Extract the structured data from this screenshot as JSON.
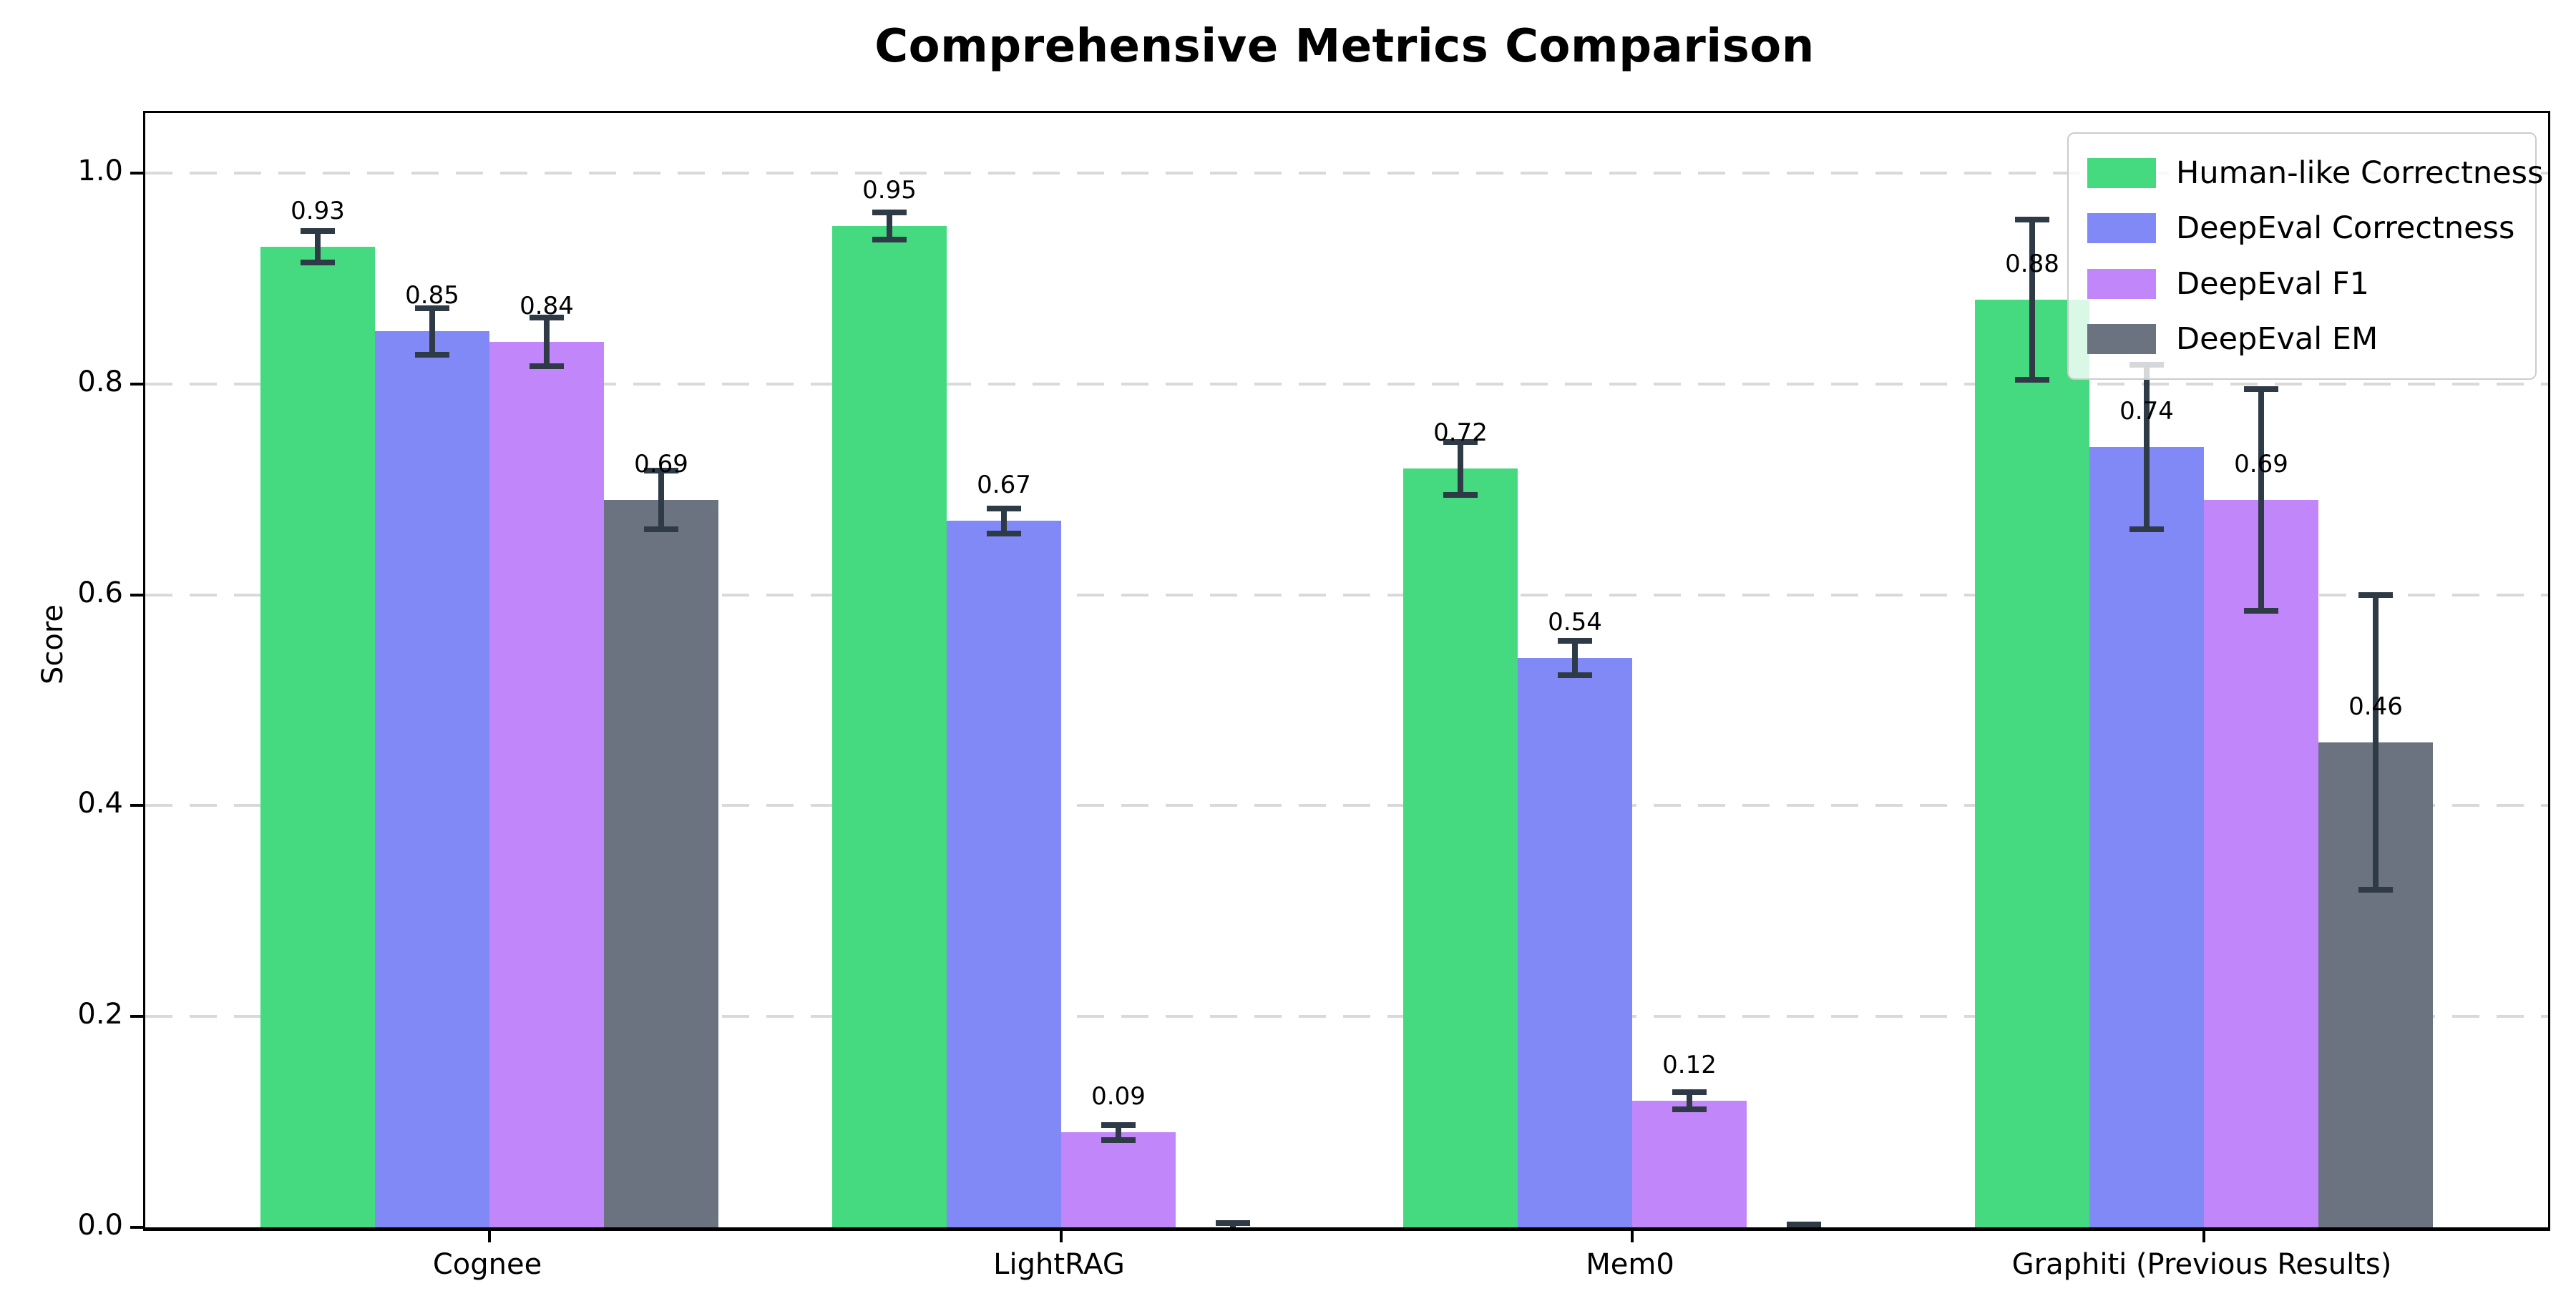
{
  "title": "Comprehensive Metrics Comparison",
  "ylabel": "Score",
  "chart_data": {
    "type": "bar",
    "title": "Comprehensive Metrics Comparison",
    "xlabel": "",
    "ylabel": "Score",
    "categories": [
      "Cognee",
      "LightRAG",
      "Mem0",
      "Graphiti (Previous Results)"
    ],
    "series": [
      {
        "name": "Human-like Correctness",
        "color": "#45da80",
        "values": [
          0.93,
          0.95,
          0.72,
          0.88
        ],
        "errors": [
          0.015,
          0.013,
          0.025,
          0.076
        ],
        "labels": [
          "0.93",
          "0.95",
          "0.72",
          "0.88"
        ]
      },
      {
        "name": "DeepEval Correctness",
        "color": "#8089f5",
        "values": [
          0.85,
          0.67,
          0.54,
          0.74
        ],
        "errors": [
          0.022,
          0.012,
          0.016,
          0.078
        ],
        "labels": [
          "0.85",
          "0.67",
          "0.54",
          "0.74"
        ]
      },
      {
        "name": "DeepEval F1",
        "color": "#c186fa",
        "values": [
          0.84,
          0.09,
          0.12,
          0.69
        ],
        "errors": [
          0.023,
          0.007,
          0.008,
          0.105
        ],
        "labels": [
          "0.84",
          "0.09",
          "0.12",
          "0.69"
        ]
      },
      {
        "name": "DeepEval EM",
        "color": "#6b7280",
        "values": [
          0.69,
          0.0,
          0.0,
          0.46
        ],
        "errors": [
          0.028,
          0.004,
          0.003,
          0.14
        ],
        "labels": [
          "0.69",
          "",
          "",
          "0.46"
        ]
      }
    ],
    "yticks": [
      "0.0",
      "0.2",
      "0.4",
      "0.6",
      "0.8",
      "1.0"
    ],
    "ylim": [
      0,
      1.057
    ],
    "grid": true,
    "grid_style": "dashed",
    "legend_position": "upper right",
    "error_bar_color": "#2f3a47",
    "axis_color": "#000000"
  }
}
